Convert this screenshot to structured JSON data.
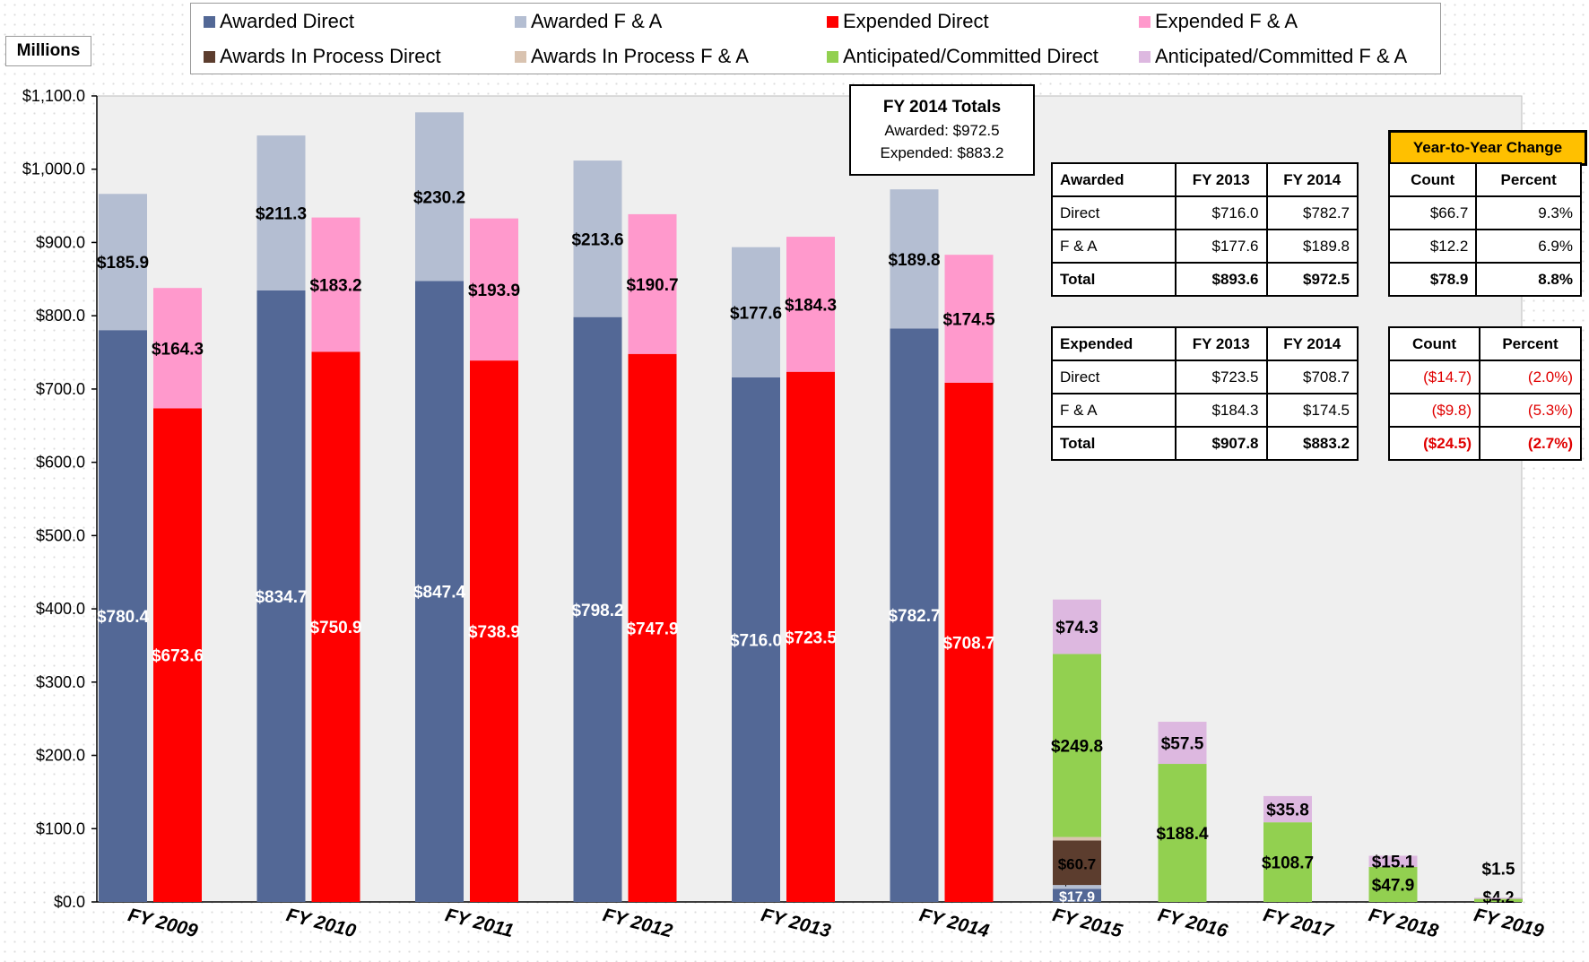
{
  "units_label": "Millions",
  "legend": [
    {
      "label": "Awarded Direct",
      "color": "#536896"
    },
    {
      "label": "Awarded F & A",
      "color": "#b4bed2"
    },
    {
      "label": "Expended Direct",
      "color": "#ff0000"
    },
    {
      "label": "Expended F & A",
      "color": "#ff99cc"
    },
    {
      "label": "Awards In Process Direct",
      "color": "#5c3d2e"
    },
    {
      "label": "Awards In Process F & A",
      "color": "#d9c3b0"
    },
    {
      "label": "Anticipated/Committed Direct",
      "color": "#92d050"
    },
    {
      "label": "Anticipated/Committed F & A",
      "color": "#ddb8e0"
    }
  ],
  "totals_box": {
    "title": "FY 2014 Totals",
    "awarded": "Awarded: $972.5",
    "expended": "Expended: $883.2"
  },
  "yoy_title": "Year-to-Year Change",
  "awarded_table": {
    "header": [
      "Awarded",
      "FY 2013",
      "FY 2014"
    ],
    "rows": [
      [
        "Direct",
        "$716.0",
        "$782.7"
      ],
      [
        "F & A",
        "$177.6",
        "$189.8"
      ],
      [
        "Total",
        "$893.6",
        "$972.5"
      ]
    ]
  },
  "awarded_change": {
    "header": [
      "Count",
      "Percent"
    ],
    "rows": [
      [
        "$66.7",
        "9.3%"
      ],
      [
        "$12.2",
        "6.9%"
      ],
      [
        "$78.9",
        "8.8%"
      ]
    ]
  },
  "expended_table": {
    "header": [
      "Expended",
      "FY 2013",
      "FY 2014"
    ],
    "rows": [
      [
        "Direct",
        "$723.5",
        "$708.7"
      ],
      [
        "F & A",
        "$184.3",
        "$174.5"
      ],
      [
        "Total",
        "$907.8",
        "$883.2"
      ]
    ]
  },
  "expended_change": {
    "header": [
      "Count",
      "Percent"
    ],
    "rows": [
      [
        "($14.7)",
        "(2.0%)"
      ],
      [
        "($9.8)",
        "(5.3%)"
      ],
      [
        "($24.5)",
        "(2.7%)"
      ]
    ]
  },
  "chart_data": {
    "type": "bar",
    "stacked": true,
    "ylim": [
      0,
      1100
    ],
    "ytick_step": 100,
    "ytick_labels": [
      "$0.0",
      "$100.0",
      "$200.0",
      "$300.0",
      "$400.0",
      "$500.0",
      "$600.0",
      "$700.0",
      "$800.0",
      "$900.0",
      "$1,000.0",
      "$1,100.0"
    ],
    "grid": false,
    "legend_position": "top",
    "categories": [
      "FY 2009",
      "FY 2010",
      "FY 2011",
      "FY 2012",
      "FY 2013",
      "FY 2014",
      "FY 2015",
      "FY 2016",
      "FY 2017",
      "FY 2018",
      "FY 2019"
    ],
    "awarded": [
      {
        "year": "FY 2009",
        "direct": 780.4,
        "fa": 185.9,
        "direct_label": "$780.4",
        "fa_label": "$185.9"
      },
      {
        "year": "FY 2010",
        "direct": 834.7,
        "fa": 211.3,
        "direct_label": "$834.7",
        "fa_label": "$211.3"
      },
      {
        "year": "FY 2011",
        "direct": 847.4,
        "fa": 230.2,
        "direct_label": "$847.4",
        "fa_label": "$230.2"
      },
      {
        "year": "FY 2012",
        "direct": 798.2,
        "fa": 213.6,
        "direct_label": "$798.2",
        "fa_label": "$213.6"
      },
      {
        "year": "FY 2013",
        "direct": 716.0,
        "fa": 177.6,
        "direct_label": "$716.0",
        "fa_label": "$177.6"
      },
      {
        "year": "FY 2014",
        "direct": 782.7,
        "fa": 189.8,
        "direct_label": "$782.7",
        "fa_label": "$189.8"
      }
    ],
    "expended": [
      {
        "year": "FY 2009",
        "direct": 673.6,
        "fa": 164.3,
        "direct_label": "$673.6",
        "fa_label": "$164.3"
      },
      {
        "year": "FY 2010",
        "direct": 750.9,
        "fa": 183.2,
        "direct_label": "$750.9",
        "fa_label": "$183.2"
      },
      {
        "year": "FY 2011",
        "direct": 738.9,
        "fa": 193.9,
        "direct_label": "$738.9",
        "fa_label": "$193.9"
      },
      {
        "year": "FY 2012",
        "direct": 747.9,
        "fa": 190.7,
        "direct_label": "$747.9",
        "fa_label": "$190.7"
      },
      {
        "year": "FY 2013",
        "direct": 723.5,
        "fa": 184.3,
        "direct_label": "$723.5",
        "fa_label": "$184.3"
      },
      {
        "year": "FY 2014",
        "direct": 708.7,
        "fa": 174.5,
        "direct_label": "$708.7",
        "fa_label": "$174.5"
      }
    ],
    "future": [
      {
        "year": "FY 2015",
        "awarded_direct": 17.9,
        "awarded_fa": 5.2,
        "in_process_direct": 60.7,
        "in_process_fa": 4.8,
        "anticipated_direct": 249.8,
        "anticipated_fa": 74.3,
        "labels": {
          "awarded_direct": "$17.9",
          "awarded_fa": "$5.2",
          "in_process_direct": "$60.7",
          "in_process_fa": "$4.8",
          "anticipated_direct": "$249.8",
          "anticipated_fa": "$74.3"
        }
      },
      {
        "year": "FY 2016",
        "anticipated_direct": 188.4,
        "anticipated_fa": 57.5,
        "labels": {
          "anticipated_direct": "$188.4",
          "anticipated_fa": "$57.5"
        }
      },
      {
        "year": "FY 2017",
        "anticipated_direct": 108.7,
        "anticipated_fa": 35.8,
        "labels": {
          "anticipated_direct": "$108.7",
          "anticipated_fa": "$35.8"
        }
      },
      {
        "year": "FY 2018",
        "anticipated_direct": 47.9,
        "anticipated_fa": 15.1,
        "labels": {
          "anticipated_direct": "$47.9",
          "anticipated_fa": "$15.1"
        }
      },
      {
        "year": "FY 2019",
        "anticipated_direct": 4.2,
        "anticipated_fa": 1.5,
        "labels": {
          "anticipated_direct": "$4.2",
          "anticipated_fa": "$1.5"
        }
      }
    ]
  }
}
